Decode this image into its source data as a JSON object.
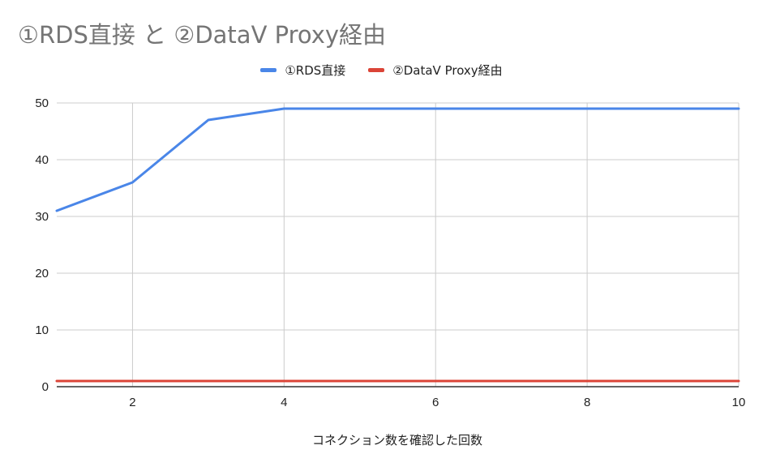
{
  "chart_data": {
    "type": "line",
    "title": "①RDS直接 と ②DataV Proxy経由",
    "xlabel": "コネクション数を確認した回数",
    "ylabel": "",
    "xlim": [
      1,
      10
    ],
    "ylim": [
      0,
      50
    ],
    "x_ticks": [
      2,
      4,
      6,
      8,
      10
    ],
    "y_ticks": [
      0,
      10,
      20,
      30,
      40,
      50
    ],
    "grid": true,
    "legend_position": "top-center",
    "x": [
      1,
      2,
      3,
      4,
      5,
      6,
      7,
      8,
      9,
      10
    ],
    "series": [
      {
        "name": "①RDS直接",
        "color": "#4a86e8",
        "values": [
          31,
          36,
          47,
          49,
          49,
          49,
          49,
          49,
          49,
          49
        ]
      },
      {
        "name": "②DataV Proxy経由",
        "color": "#db4437",
        "values": [
          1,
          1,
          1,
          1,
          1,
          1,
          1,
          1,
          1,
          1
        ]
      }
    ]
  }
}
